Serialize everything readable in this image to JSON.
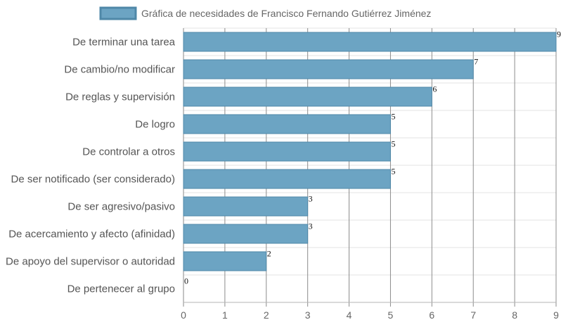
{
  "chart_data": {
    "type": "bar",
    "orientation": "horizontal",
    "categories": [
      "De terminar una tarea",
      "De cambio/no modificar",
      "De reglas y supervisión",
      "De logro",
      "De controlar a otros",
      "De ser notificado (ser considerado)",
      "De ser agresivo/pasivo",
      "De acercamiento y afecto (afinidad)",
      "De apoyo del supervisor o autoridad",
      "De pertenecer al grupo"
    ],
    "series": [
      {
        "name": "Gráfica de necesidades de Francisco Fernando Gutiérrez Jiménez",
        "values": [
          9,
          7,
          6,
          5,
          5,
          5,
          3,
          3,
          2,
          0
        ]
      }
    ],
    "xlim": [
      0,
      9
    ],
    "xticks": [
      "0",
      "1",
      "2",
      "3",
      "4",
      "5",
      "6",
      "7",
      "8",
      "9"
    ],
    "grid": true,
    "legend_position": "top",
    "bar_color": "#6ca4c3",
    "bar_border_color": "#4f88a8"
  }
}
